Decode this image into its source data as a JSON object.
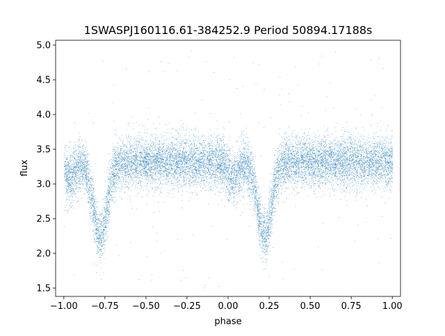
{
  "chart_data": {
    "type": "scatter",
    "title": "1SWASPJ160116.61-384252.9 Period 50894.17188s",
    "xlabel": "phase",
    "ylabel": "flux",
    "xlim": [
      -1.05,
      1.05
    ],
    "ylim": [
      1.38,
      5.07
    ],
    "xticks": [
      -1.0,
      -0.75,
      -0.5,
      -0.25,
      0.0,
      0.25,
      0.5,
      0.75,
      1.0
    ],
    "xtick_labels": [
      "−1.00",
      "−0.75",
      "−0.50",
      "−0.25",
      "0.00",
      "0.25",
      "0.50",
      "0.75",
      "1.00"
    ],
    "yticks": [
      1.5,
      2.0,
      2.5,
      3.0,
      3.5,
      4.0,
      4.5,
      5.0
    ],
    "ytick_labels": [
      "1.5",
      "2.0",
      "2.5",
      "3.0",
      "3.5",
      "4.0",
      "4.5",
      "5.0"
    ],
    "marker_color": "#1f77b4",
    "grid": false,
    "legend": "none",
    "light_curve_profile": {
      "phase_range": [
        -1.0,
        1.0
      ],
      "baseline_flux": 3.32,
      "baseline_scatter": 0.18,
      "primary_minima": [
        {
          "phase": -0.78,
          "min_flux": 2.25,
          "width": 0.06
        },
        {
          "phase": 0.22,
          "min_flux": 2.25,
          "width": 0.06
        }
      ],
      "secondary_minima": [
        {
          "phase": -0.97,
          "min_flux": 3.1,
          "width": 0.05
        },
        {
          "phase": 0.03,
          "min_flux": 3.1,
          "width": 0.05
        }
      ],
      "outlier_range": [
        1.5,
        4.95
      ],
      "approx_point_count": 14000
    }
  }
}
